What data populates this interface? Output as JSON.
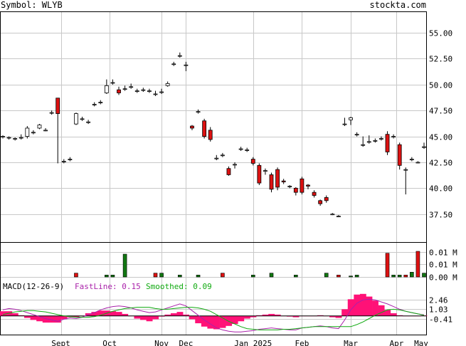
{
  "header": {
    "symbol_text": "Symbol: WLYB",
    "site_text": "stockta.com"
  },
  "colors": {
    "up": "#ffffff",
    "down": "#dd1111",
    "outline": "#000000",
    "grid": "#c8c8c8",
    "vol_up": "#117711",
    "vol_down": "#dd1111",
    "macd_hist": "#ff1177",
    "fast_line": "#aa22aa",
    "smoothed_line": "#11aa11",
    "fast_label": "#aa22aa",
    "smoothed_label": "#11aa11"
  },
  "chart_data": [
    {
      "type": "candlestick",
      "name": "price",
      "dates": [
        "2024-08-05",
        "2024-08-08",
        "2024-08-12",
        "2024-08-15",
        "2024-08-19",
        "2024-08-22",
        "2024-08-26",
        "2024-08-29",
        "2024-09-03",
        "2024-09-05",
        "2024-09-10",
        "2024-09-13",
        "2024-09-17",
        "2024-09-20",
        "2024-09-24",
        "2024-09-27",
        "2024-10-01",
        "2024-10-03",
        "2024-10-07",
        "2024-10-10",
        "2024-10-14",
        "2024-10-17",
        "2024-10-21",
        "2024-10-24",
        "2024-10-28",
        "2024-10-31",
        "2024-11-04",
        "2024-11-07",
        "2024-11-11",
        "2024-11-13",
        "2024-11-18",
        "2024-11-21",
        "2024-11-25",
        "2024-11-29",
        "2024-12-03",
        "2024-12-06",
        "2024-12-10",
        "2024-12-13",
        "2024-12-17",
        "2024-12-20",
        "2024-12-26",
        "2024-12-31",
        "2025-01-06",
        "2025-01-10",
        "2025-01-14",
        "2025-01-17",
        "2025-01-22",
        "2025-01-28",
        "2025-01-31",
        "2025-02-05",
        "2025-02-10",
        "2025-02-14",
        "2025-02-20",
        "2025-02-26",
        "2025-03-03",
        "2025-03-05",
        "2025-03-10",
        "2025-03-14",
        "2025-03-18",
        "2025-03-21",
        "2025-03-25",
        "2025-03-28",
        "2025-04-02",
        "2025-04-04",
        "2025-04-08",
        "2025-04-10",
        "2025-04-14",
        "2025-04-17",
        "2025-04-23",
        "2025-04-30"
      ],
      "open": [
        45.0,
        44.9,
        44.8,
        44.9,
        45.0,
        45.4,
        45.8,
        45.6,
        47.3,
        48.7,
        42.6,
        42.8,
        46.2,
        46.7,
        46.4,
        48.1,
        48.3,
        49.2,
        50.2,
        49.5,
        49.6,
        49.8,
        49.4,
        49.5,
        49.4,
        49.1,
        49.3,
        49.9,
        52.0,
        52.8,
        51.9,
        46.0,
        47.4,
        46.5,
        45.6,
        42.9,
        43.2,
        41.9,
        42.3,
        43.8,
        43.7,
        42.8,
        42.2,
        41.7,
        41.3,
        41.8,
        40.7,
        40.2,
        40.0,
        40.9,
        40.3,
        39.6,
        38.8,
        39.1,
        37.5,
        37.3,
        46.2,
        46.6,
        45.2,
        44.2,
        44.5,
        44.6,
        44.8,
        45.2,
        45.0,
        44.2,
        41.8,
        42.8,
        42.5,
        44.0
      ],
      "close": [
        45.0,
        44.9,
        44.8,
        44.9,
        45.8,
        45.4,
        46.1,
        45.6,
        47.3,
        47.2,
        42.6,
        42.8,
        47.2,
        46.7,
        46.4,
        48.1,
        48.3,
        49.9,
        50.2,
        49.2,
        49.6,
        49.8,
        49.4,
        49.5,
        49.4,
        49.1,
        49.3,
        50.1,
        52.0,
        52.8,
        51.9,
        45.8,
        47.4,
        45.0,
        44.7,
        42.9,
        43.2,
        41.3,
        42.3,
        43.8,
        43.7,
        42.4,
        40.5,
        41.7,
        39.9,
        40.1,
        40.6,
        40.2,
        39.6,
        39.6,
        40.2,
        39.3,
        38.5,
        38.8,
        37.5,
        37.3,
        46.2,
        46.8,
        45.2,
        44.2,
        44.5,
        44.6,
        44.8,
        43.5,
        45.0,
        42.2,
        41.8,
        42.8,
        42.5,
        44.0
      ],
      "high": [
        45.1,
        45.0,
        44.9,
        45.2,
        46.0,
        45.6,
        46.2,
        45.8,
        47.5,
        48.7,
        42.8,
        43.0,
        47.3,
        46.9,
        46.6,
        48.3,
        48.5,
        50.5,
        50.5,
        49.8,
        49.9,
        50.1,
        49.6,
        49.7,
        49.6,
        49.4,
        49.6,
        50.3,
        52.2,
        53.1,
        52.2,
        46.1,
        47.6,
        46.7,
        45.9,
        43.2,
        43.4,
        42.1,
        42.5,
        44.0,
        43.9,
        43.0,
        42.4,
        41.9,
        41.5,
        42.0,
        40.9,
        40.3,
        40.1,
        41.1,
        40.4,
        39.8,
        38.9,
        39.3,
        37.6,
        37.4,
        46.8,
        46.9,
        45.4,
        45.0,
        45.1,
        44.8,
        45.0,
        45.5,
        45.2,
        44.4,
        42.0,
        43.0,
        42.6,
        44.4
      ],
      "low": [
        44.8,
        44.7,
        44.6,
        44.7,
        44.8,
        45.2,
        45.7,
        45.5,
        47.1,
        42.4,
        42.4,
        42.6,
        46.1,
        46.5,
        46.2,
        47.9,
        48.1,
        49.1,
        50.0,
        49.0,
        49.4,
        49.6,
        49.2,
        49.3,
        49.2,
        48.9,
        49.1,
        49.8,
        51.8,
        52.6,
        51.3,
        45.6,
        47.2,
        44.8,
        44.5,
        42.7,
        43.0,
        41.2,
        41.9,
        43.6,
        43.5,
        42.2,
        40.3,
        41.3,
        39.6,
        39.8,
        40.4,
        40.0,
        39.3,
        39.4,
        39.9,
        39.1,
        38.3,
        38.6,
        37.4,
        37.2,
        46.0,
        46.1,
        45.0,
        44.0,
        44.3,
        44.4,
        44.6,
        43.2,
        44.8,
        41.8,
        39.4,
        42.6,
        42.4,
        43.8
      ],
      "y_ticks": [
        "55.00",
        "52.50",
        "50.00",
        "47.50",
        "45.00",
        "42.50",
        "40.00",
        "37.50"
      ],
      "y_tick_values": [
        55.0,
        52.5,
        50.0,
        47.5,
        45.0,
        42.5,
        40.0,
        37.5
      ],
      "ylim": [
        34.8,
        57.0
      ],
      "grid": true
    },
    {
      "type": "bar",
      "name": "volume",
      "unit_note": "",
      "x_index": [
        12,
        17,
        18,
        20,
        25,
        26,
        29,
        32,
        36,
        41,
        44,
        48,
        53,
        55,
        57,
        58,
        63,
        64,
        65,
        66,
        67,
        68,
        69
      ],
      "values": [
        0.002,
        0.001,
        0.001,
        0.012,
        0.002,
        0.002,
        0.001,
        0.001,
        0.002,
        0.001,
        0.002,
        0.001,
        0.002,
        0.001,
        0.0005,
        0.001,
        0.0125,
        0.001,
        0.001,
        0.001,
        0.0025,
        0.0135,
        0.002
      ],
      "direction": [
        "down",
        "up",
        "up",
        "up",
        "down",
        "up",
        "up",
        "up",
        "down",
        "up",
        "up",
        "up",
        "up",
        "down",
        "up",
        "up",
        "down",
        "up",
        "up",
        "down",
        "up",
        "down",
        "up"
      ],
      "y_ticks": [
        "0.01 M",
        "0.01 M",
        "0.00 M"
      ],
      "y_tick_values": [
        0.0133,
        0.0067,
        0.0
      ],
      "ylim": [
        0,
        0.018
      ],
      "grid": true
    },
    {
      "type": "macd",
      "name": "MACD",
      "label": "MACD(12-26-9)",
      "fast_label": "FastLine: 0.15",
      "smoothed_label": "Smoothed: 0.09",
      "fast": [
        0.9,
        1.1,
        1.0,
        0.8,
        0.5,
        0.2,
        -0.1,
        -0.4,
        -0.6,
        -0.8,
        -0.5,
        -0.3,
        -0.4,
        -0.2,
        0.2,
        0.5,
        0.9,
        1.2,
        1.4,
        1.5,
        1.4,
        1.2,
        0.9,
        0.7,
        0.5,
        0.6,
        0.9,
        1.2,
        1.5,
        1.8,
        1.5,
        0.8,
        0.1,
        -0.6,
        -1.2,
        -1.8,
        -2.1,
        -2.3,
        -2.4,
        -2.4,
        -2.3,
        -2.2,
        -2.0,
        -1.9,
        -1.8,
        -1.9,
        -2.0,
        -2.1,
        -2.1,
        -1.8,
        -1.7,
        -1.6,
        -1.5,
        -1.6,
        -1.8,
        -1.9,
        -0.6,
        0.9,
        1.9,
        2.4,
        2.5,
        2.4,
        2.1,
        1.8,
        1.4,
        1.0,
        0.7,
        0.5,
        0.3,
        0.15
      ],
      "smoothed": [
        0.2,
        0.4,
        0.6,
        0.7,
        0.8,
        0.8,
        0.7,
        0.6,
        0.4,
        0.2,
        0.0,
        -0.1,
        -0.2,
        -0.2,
        -0.2,
        -0.1,
        0.1,
        0.4,
        0.7,
        0.9,
        1.1,
        1.2,
        1.3,
        1.3,
        1.3,
        1.1,
        1.0,
        1.0,
        1.1,
        1.2,
        1.3,
        1.3,
        1.2,
        1.0,
        0.7,
        0.2,
        -0.3,
        -0.8,
        -1.2,
        -1.6,
        -1.9,
        -2.0,
        -2.1,
        -2.1,
        -2.1,
        -2.1,
        -2.0,
        -2.0,
        -1.9,
        -1.8,
        -1.7,
        -1.6,
        -1.6,
        -1.6,
        -1.6,
        -1.6,
        -1.6,
        -1.6,
        -1.3,
        -0.9,
        -0.4,
        0.1,
        0.5,
        0.9,
        1.0,
        0.9,
        0.7,
        0.5,
        0.3,
        0.09
      ],
      "y_ticks": [
        "2.46",
        "1.03",
        "-0.41"
      ],
      "y_tick_values": [
        2.46,
        1.03,
        -0.41
      ],
      "ylim": [
        -2.8,
        3.6
      ],
      "grid": true
    }
  ],
  "x_axis": {
    "labels": [
      "Sept",
      "Oct",
      "Nov",
      "Dec",
      "Jan 2025",
      "Feb",
      "Mar",
      "Apr",
      "May"
    ],
    "label_index": [
      9.5,
      17.5,
      26,
      30,
      41,
      49,
      57,
      64.5,
      76
    ]
  }
}
